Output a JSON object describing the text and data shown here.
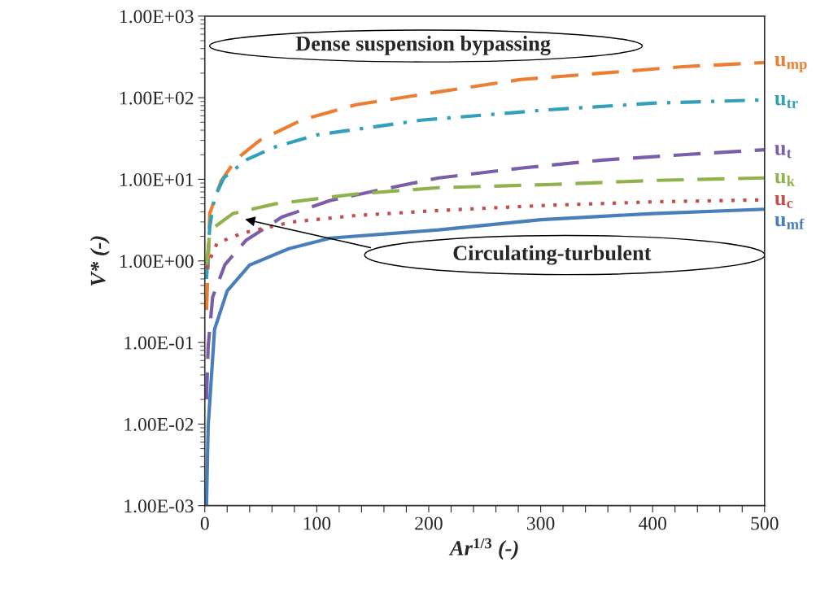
{
  "chart_data": {
    "type": "line",
    "xlabel": "Ar$^{1/3}$ (-)",
    "ylabel": "V* (-)",
    "log": "y",
    "xlim": [
      0,
      500
    ],
    "ylim": [
      0.001,
      1000
    ],
    "xticks": [
      0,
      {
        "value": 20,
        "label": null
      },
      {
        "value": 40,
        "label": null
      },
      {
        "value": 60,
        "label": null
      },
      {
        "value": 80,
        "label": null
      },
      100,
      {
        "value": 120,
        "label": null
      },
      {
        "value": 140,
        "label": null
      },
      {
        "value": 160,
        "label": null
      },
      {
        "value": 180,
        "label": null
      },
      200,
      {
        "value": 220,
        "label": null
      },
      {
        "value": 240,
        "label": null
      },
      {
        "value": 260,
        "label": null
      },
      {
        "value": 280,
        "label": null
      },
      300,
      {
        "value": 320,
        "label": null
      },
      {
        "value": 340,
        "label": null
      },
      {
        "value": 360,
        "label": null
      },
      {
        "value": 380,
        "label": null
      },
      400,
      {
        "value": 420,
        "label": null
      },
      {
        "value": 440,
        "label": null
      },
      {
        "value": 460,
        "label": null
      },
      {
        "value": 480,
        "label": null
      },
      500
    ],
    "yticks": [
      {
        "value": 0.001,
        "label": "1.00E-03"
      },
      {
        "value": 0.01,
        "label": "1.00E-02"
      },
      {
        "value": 0.1,
        "label": "1.00E-01"
      },
      {
        "value": 1,
        "label": "1.00E+00"
      },
      {
        "value": 10,
        "label": "1.00E+01"
      },
      {
        "value": 100,
        "label": "1.00E+02"
      },
      {
        "value": 1000,
        "label": "1.00E+03"
      }
    ],
    "grid": false,
    "legend": false,
    "series": [
      {
        "name": "u$_{mp}$",
        "color": "#ed7d31",
        "line_style": "dashed",
        "x": [
          1.5,
          3,
          4.4,
          14.5,
          28,
          49,
          86,
          135,
          209,
          282,
          355,
          427,
          500
        ],
        "values": [
          0.25,
          0.9,
          3.8,
          9.5,
          17.6,
          30,
          53,
          82,
          118,
          167,
          200,
          240,
          270
        ]
      },
      {
        "name": "u$_{tr}$",
        "color": "#31a0b8",
        "line_style": "dashdot",
        "x": [
          1.5,
          4.4,
          8.7,
          17,
          38,
          63,
          100,
          193,
          306,
          403,
          500
        ],
        "values": [
          0.6,
          2.6,
          6,
          10.4,
          17.6,
          25,
          35,
          53,
          71,
          86,
          94
        ]
      },
      {
        "name": "u$_{t}$",
        "color": "#7b5ea7",
        "line_style": "dashed",
        "x": [
          1.5,
          3,
          7,
          18,
          37,
          69,
          112,
          152,
          209,
          282,
          355,
          427,
          500
        ],
        "values": [
          0.02,
          0.09,
          0.36,
          0.9,
          1.8,
          3.45,
          5.5,
          7.2,
          10.4,
          13.7,
          17.2,
          20,
          23
        ]
      },
      {
        "name": "u$_{k}$",
        "color": "#8fb24c",
        "line_style": "dashed",
        "x": [
          1.5,
          4.4,
          8.7,
          25,
          63,
          135,
          209,
          306,
          403,
          500
        ],
        "values": [
          0.9,
          2.2,
          2.6,
          3.8,
          5,
          6.6,
          7.9,
          8.6,
          9.7,
          10.4
        ]
      },
      {
        "name": "u$_{c}$",
        "color": "#c0504d",
        "line_style": "dotted",
        "x": [
          1.5,
          3,
          11,
          34,
          78,
          135,
          209,
          306,
          403,
          500
        ],
        "values": [
          0.8,
          0.93,
          1.65,
          2.2,
          3.0,
          3.6,
          4.15,
          4.8,
          5.3,
          5.6
        ]
      },
      {
        "name": "u$_{mf}$",
        "color": "#4a7ebb",
        "line_style": "solid",
        "x": [
          1.5,
          3,
          8.7,
          20,
          40,
          75,
          112,
          209,
          300,
          400,
          500
        ],
        "values": [
          0.001,
          0.0095,
          0.145,
          0.43,
          0.89,
          1.41,
          1.9,
          2.4,
          3.2,
          3.8,
          4.3
        ]
      }
    ],
    "annotations": [
      "Dense suspension bypassing",
      "Circulating-turbulent"
    ]
  }
}
